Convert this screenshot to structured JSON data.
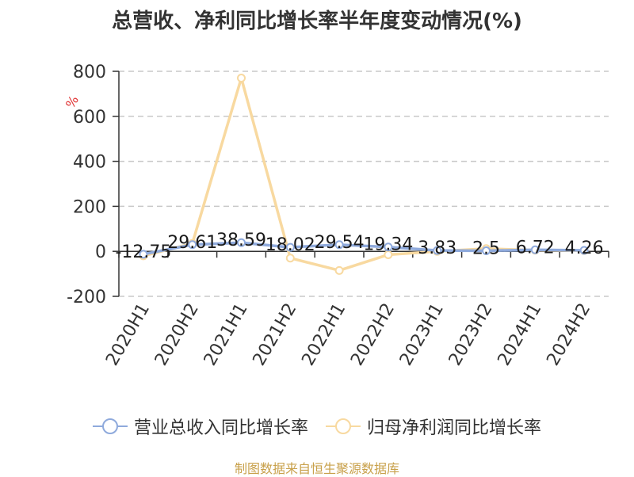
{
  "title": "总营收、净利同比增长率半年度变动情况(%)",
  "source_note": "制图数据来自恒生聚源数据库",
  "chart_data": {
    "type": "line",
    "title": "总营收、净利同比增长率半年度变动情况(%)",
    "categories": [
      "2020H1",
      "2020H2",
      "2021H1",
      "2021H2",
      "2022H1",
      "2022H2",
      "2023H1",
      "2023H2",
      "2024H1",
      "2024H2"
    ],
    "ylabel": "%",
    "ylim": [
      -200,
      800
    ],
    "yticks": [
      -200,
      0,
      200,
      400,
      600,
      800
    ],
    "grid": true,
    "legend_position": "bottom",
    "series": [
      {
        "name": "营业总收入同比增长率",
        "color": "#8faadc",
        "values": [
          -12.75,
          29.61,
          38.59,
          18.02,
          29.54,
          19.34,
          3.83,
          2.5,
          6.72,
          4.26
        ],
        "labels": [
          "-12.75",
          "29.61",
          "38.59",
          "18.02",
          "29.54",
          "19.34",
          "3.83",
          "2.5",
          "6.72",
          "4.26"
        ]
      },
      {
        "name": "归母净利润同比增长率",
        "color": "#f8d9a0",
        "values": [
          -20,
          35,
          770,
          -30,
          -85,
          -15,
          0,
          12,
          5,
          3
        ]
      }
    ]
  }
}
